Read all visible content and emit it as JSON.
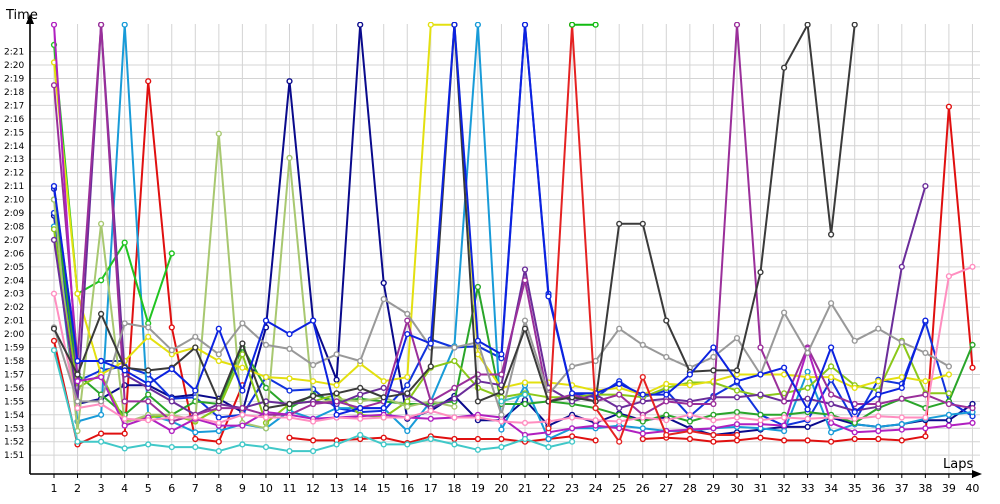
{
  "chart_data": {
    "type": "line",
    "title": "",
    "ylabel": "Time",
    "xlabel": "Laps",
    "x": [
      1,
      2,
      3,
      4,
      5,
      6,
      7,
      8,
      9,
      10,
      11,
      12,
      13,
      14,
      15,
      16,
      17,
      18,
      19,
      20,
      21,
      22,
      23,
      24,
      25,
      26,
      27,
      28,
      29,
      30,
      31,
      32,
      33,
      34,
      35,
      36,
      37,
      38,
      39,
      40
    ],
    "y_ticks_sec": [
      111,
      112,
      113,
      114,
      115,
      116,
      117,
      118,
      119,
      120,
      121,
      122,
      123,
      124,
      125,
      126,
      127,
      128,
      129,
      130,
      131,
      132,
      133,
      134,
      135,
      136,
      137,
      138,
      139,
      140,
      141
    ],
    "y_tick_labels": [
      "1:51",
      "1:52",
      "1:53",
      "1:54",
      "1:55",
      "1:56",
      "1:57",
      "1:58",
      "1:59",
      "2:00",
      "2:01",
      "2:02",
      "2:03",
      "2:04",
      "2:05",
      "2:06",
      "2:07",
      "2:08",
      "2:09",
      "2:10",
      "2:11",
      "2:12",
      "2:13",
      "2:14",
      "2:15",
      "2:16",
      "2:17",
      "2:18",
      "2:19",
      "2:20",
      "2:21"
    ],
    "ylim_sec": [
      109.6,
      143.2
    ],
    "grid": true,
    "legend": "none",
    "series": [
      {
        "color": "#e01010",
        "values": [
          119.5,
          111.8,
          112.6,
          112.6,
          138.8,
          120.5,
          112.2,
          112.0,
          116.2,
          null,
          112.3,
          112.1,
          112.1,
          112.2,
          112.3,
          111.9,
          112.4,
          112.2,
          112.2,
          112.2,
          112.0,
          112.2,
          112.4,
          112.1,
          null,
          112.2,
          112.3,
          112.2,
          112.0,
          112.1,
          112.3,
          112.1,
          112.1,
          112.0,
          112.2,
          112.2,
          112.1,
          112.4,
          136.9,
          117.5
        ]
      },
      {
        "color": "#1a2db8",
        "values": [
          130.8,
          118.0,
          118.0,
          118.0,
          null,
          null,
          null,
          null,
          null,
          null,
          null,
          null,
          null,
          null,
          null,
          null,
          null,
          null,
          null,
          null,
          null,
          null,
          null,
          null,
          null,
          null,
          null,
          null,
          null,
          null,
          null,
          null,
          null,
          null,
          null,
          null,
          null,
          null,
          null,
          null
        ]
      },
      {
        "color": "#0a0a8c",
        "values": [
          128.8,
          114.8,
          115.2,
          116.2,
          116.2,
          115.3,
          115.5,
          115.2,
          114.2,
          120.5,
          138.8,
          121.0,
          116.6,
          143.0,
          123.8,
          113.7,
          114.3,
          115.4,
          113.6,
          113.6,
          115.1,
          113.2,
          114.0,
          113.4,
          114.1,
          113.6,
          113.8,
          113.0,
          112.5,
          112.7,
          112.9,
          113.1,
          113.1,
          113.8,
          113.3,
          113.1,
          113.3,
          113.6,
          113.6,
          114.8
        ]
      },
      {
        "color": "#1133dd",
        "values": [
          129.0,
          116.5,
          117.3,
          117.6,
          117.0,
          115.2,
          115.3,
          113.8,
          114.0,
          116.8,
          115.8,
          115.9,
          114.5,
          114.2,
          114.3,
          116.2,
          119.6,
          119.0,
          119.1,
          118.2,
          143.0,
          123.0,
          115.6,
          115.3,
          116.5,
          115.3,
          115.8,
          113.9,
          115.4,
          116.4,
          114.0,
          113.2,
          113.6,
          116.6,
          113.5,
          116.6,
          116.3,
          120.9,
          115.0,
          113.9
        ]
      },
      {
        "color": "#189bd8",
        "values": [
          128.0,
          113.5,
          114.0,
          143.0,
          114.0,
          113.5,
          112.7,
          112.8,
          113.3,
          113.0,
          114.3,
          113.7,
          114.5,
          114.5,
          114.5,
          112.8,
          115.0,
          119.1,
          143.0,
          112.9,
          116.2,
          112.2,
          113.0,
          113.0,
          113.2,
          113.0,
          112.8,
          112.8,
          113.0,
          113.1,
          113.0,
          112.8,
          117.2,
          112.7,
          113.3,
          113.1,
          113.3,
          113.7,
          114.0,
          114.2
        ]
      },
      {
        "color": "#21c421",
        "values": [
          141.5,
          123.0,
          124.0,
          126.8,
          120.8,
          126.0,
          null,
          null,
          null,
          null,
          null,
          null,
          null,
          null,
          null,
          null,
          null,
          null,
          null,
          null,
          null,
          null,
          null,
          null,
          null,
          null,
          null,
          null,
          null,
          null,
          null,
          null,
          null,
          null,
          null,
          null,
          null,
          null,
          null,
          null
        ]
      },
      {
        "color": "#2aa52a",
        "values": [
          130.0,
          117.0,
          115.5,
          114.0,
          115.5,
          114.0,
          115.0,
          114.8,
          119.0,
          116.0,
          114.5,
          115.5,
          115.0,
          115.2,
          115.0,
          114.8,
          114.8,
          115.0,
          123.5,
          114.8,
          114.8,
          115.0,
          114.8,
          114.5,
          114.0,
          113.5,
          114.0,
          113.5,
          114.0,
          114.2,
          114.0,
          114.0,
          114.2,
          114.0,
          113.4,
          114.5,
          115.2,
          114.5,
          115.0,
          119.2
        ]
      },
      {
        "color": "#8bc81a",
        "values": [
          127.8,
          116.0,
          117.0,
          113.5,
          113.8,
          114.0,
          113.5,
          114.5,
          118.5,
          113.4,
          114.8,
          115.0,
          115.5,
          114.0,
          113.8,
          115.0,
          117.5,
          118.0,
          116.0,
          115.3,
          115.6,
          115.3,
          115.3,
          115.5,
          115.5,
          115.3,
          116.0,
          116.4,
          116.4,
          115.8,
          115.4,
          115.6,
          116.0,
          117.6,
          116.2,
          115.8,
          119.5,
          115.6,
          115.6,
          null
        ]
      },
      {
        "color": "#a8c870",
        "values": [
          130.0,
          112.8,
          128.2,
          113.4,
          114.0,
          114.0,
          113.6,
          134.9,
          113.4,
          113.0,
          133.1,
          114.8,
          115.2,
          115.0,
          115.3,
          114.6,
          115.0,
          114.6,
          null,
          null,
          null,
          null,
          null,
          null,
          null,
          null,
          null,
          null,
          null,
          null,
          null,
          null,
          null,
          null,
          null,
          null,
          null,
          null,
          null,
          null
        ]
      },
      {
        "color": "#e3e010",
        "values": [
          140.2,
          123.0,
          117.0,
          118.0,
          119.8,
          118.5,
          119.0,
          118.0,
          117.5,
          116.8,
          116.7,
          116.5,
          116.2,
          117.8,
          116.5,
          116.8,
          143.0,
          143.0,
          118.5,
          116.0,
          116.4,
          116.4,
          116.2,
          115.8,
          116.0,
          115.5,
          116.3,
          116.2,
          116.5,
          117.0,
          117.0,
          117.0,
          116.8,
          116.8,
          116.0,
          116.5,
          116.8,
          116.5,
          117.0,
          null
        ]
      },
      {
        "color": "#6b2d9a",
        "values": [
          127.0,
          115.0,
          143.0,
          117.0,
          116.0,
          115.0,
          114.0,
          114.8,
          114.5,
          115.0,
          114.8,
          115.0,
          114.8,
          115.5,
          116.0,
          115.5,
          114.5,
          115.2,
          116.5,
          116.2,
          124.8,
          116.0,
          115.0,
          115.5,
          114.5,
          115.0,
          115.2,
          115.0,
          115.3,
          115.3,
          115.5,
          115.0,
          115.2,
          114.8,
          114.3,
          114.6,
          125.0,
          131.0,
          null,
          null
        ]
      },
      {
        "color": "#9a2f9a",
        "values": [
          138.5,
          118.0,
          143.0,
          115.0,
          115.0,
          113.5,
          114.0,
          114.5,
          114.5,
          114.0,
          114.0,
          114.8,
          115.0,
          114.5,
          115.0,
          121.0,
          115.0,
          116.0,
          117.0,
          117.0,
          124.0,
          115.0,
          115.5,
          115.0,
          115.5,
          114.0,
          115.0,
          114.8,
          114.8,
          143.0,
          119.0,
          115.0,
          119.0,
          115.5,
          114.8,
          114.8,
          115.2,
          115.5,
          114.8,
          114.5
        ]
      },
      {
        "color": "#b020c0",
        "values": [
          143.0,
          116.5,
          116.8,
          113.2,
          113.8,
          112.8,
          113.7,
          113.2,
          113.2,
          114.2,
          114.0,
          113.7,
          113.8,
          113.9,
          114.0,
          113.8,
          113.7,
          113.8,
          114.0,
          113.8,
          112.5,
          112.7,
          113.0,
          113.2,
          113.0,
          112.6,
          112.8,
          112.9,
          113.0,
          113.3,
          113.3,
          113.2,
          118.9,
          113.4,
          112.7,
          112.8,
          112.9,
          113.0,
          113.2,
          113.4
        ]
      },
      {
        "color": "#ff8ec0",
        "values": [
          123.0,
          114.5,
          114.8,
          113.7,
          113.6,
          113.8,
          113.8,
          113.4,
          114.0,
          113.8,
          113.8,
          113.5,
          113.8,
          113.7,
          113.8,
          113.8,
          114.3,
          113.8,
          113.8,
          113.5,
          113.4,
          113.5,
          113.8,
          113.6,
          113.5,
          113.8,
          113.6,
          114.0,
          113.6,
          113.8,
          113.6,
          113.8,
          113.7,
          113.8,
          113.7,
          113.9,
          113.8,
          113.8,
          124.3,
          125.0
        ]
      },
      {
        "color": "#999999",
        "values": [
          120.5,
          115.0,
          115.0,
          120.8,
          120.5,
          118.8,
          119.8,
          118.5,
          120.8,
          119.2,
          118.9,
          117.7,
          118.5,
          118.0,
          122.6,
          121.5,
          119.0,
          119.0,
          119.4,
          114.0,
          121.0,
          115.5,
          117.6,
          118.0,
          120.4,
          119.2,
          118.3,
          117.5,
          118.3,
          119.7,
          117.0,
          121.6,
          118.6,
          122.3,
          119.5,
          120.4,
          119.4,
          118.6,
          117.6,
          null
        ]
      },
      {
        "color": "#3a3a3a",
        "values": [
          120.4,
          117.0,
          121.5,
          117.5,
          117.3,
          117.5,
          119.0,
          115.0,
          119.3,
          114.5,
          114.8,
          115.4,
          115.6,
          116.0,
          115.3,
          115.6,
          117.6,
          143.0,
          115.0,
          115.7,
          120.4,
          115.0,
          115.3,
          115.0,
          128.2,
          128.2,
          121.0,
          117.2,
          117.3,
          117.3,
          124.6,
          139.8,
          143.0,
          127.4,
          143.0,
          null,
          null,
          null,
          null,
          null
        ]
      },
      {
        "color": "#0c22e0",
        "values": [
          131.0,
          118.0,
          118.0,
          117.3,
          116.3,
          117.4,
          115.8,
          120.4,
          115.8,
          121.0,
          120.0,
          121.0,
          114.0,
          114.5,
          114.5,
          120.0,
          119.3,
          143.0,
          119.5,
          118.5,
          143.0,
          122.8,
          115.6,
          115.6,
          116.3,
          115.5,
          115.5,
          117.0,
          119.0,
          116.5,
          117.0,
          117.5,
          114.4,
          119.0,
          114.2,
          115.5,
          116.0,
          121.0,
          null,
          null
        ]
      },
      {
        "color": "#e52222",
        "values": [
          null,
          null,
          null,
          null,
          null,
          null,
          null,
          null,
          null,
          null,
          null,
          null,
          null,
          null,
          null,
          null,
          null,
          null,
          null,
          null,
          null,
          113.0,
          143.0,
          114.5,
          112.0,
          116.8,
          112.5,
          112.8,
          112.5,
          112.5,
          null,
          null,
          null,
          null,
          null,
          null,
          null,
          null,
          null,
          null
        ]
      },
      {
        "color": "#11bb11",
        "values": [
          null,
          null,
          null,
          null,
          null,
          null,
          null,
          null,
          null,
          null,
          null,
          null,
          null,
          null,
          null,
          null,
          null,
          null,
          null,
          null,
          null,
          null,
          143.0,
          143.0,
          null,
          null,
          null,
          null,
          null,
          null,
          null,
          null,
          null,
          null,
          null,
          null,
          null,
          null,
          null,
          null
        ]
      },
      {
        "color": "#40c8c8",
        "values": [
          118.8,
          112.0,
          112.0,
          111.5,
          111.8,
          111.6,
          111.6,
          111.3,
          111.8,
          111.6,
          111.3,
          111.3,
          111.8,
          112.5,
          111.8,
          111.8,
          112.2,
          111.8,
          111.4,
          111.6,
          112.2,
          111.6,
          112.0,
          null,
          null,
          null,
          null,
          null,
          null,
          null,
          null,
          null,
          null,
          null,
          null,
          null,
          null,
          null,
          null,
          null
        ]
      },
      {
        "color": "#30c0c0",
        "values": [
          null,
          null,
          null,
          null,
          null,
          null,
          null,
          null,
          null,
          null,
          null,
          null,
          null,
          null,
          null,
          null,
          null,
          null,
          null,
          115.0,
          115.5,
          null,
          null,
          null,
          null,
          null,
          null,
          null,
          null,
          null,
          null,
          null,
          null,
          null,
          null,
          null,
          null,
          null,
          null,
          null
        ]
      }
    ]
  }
}
